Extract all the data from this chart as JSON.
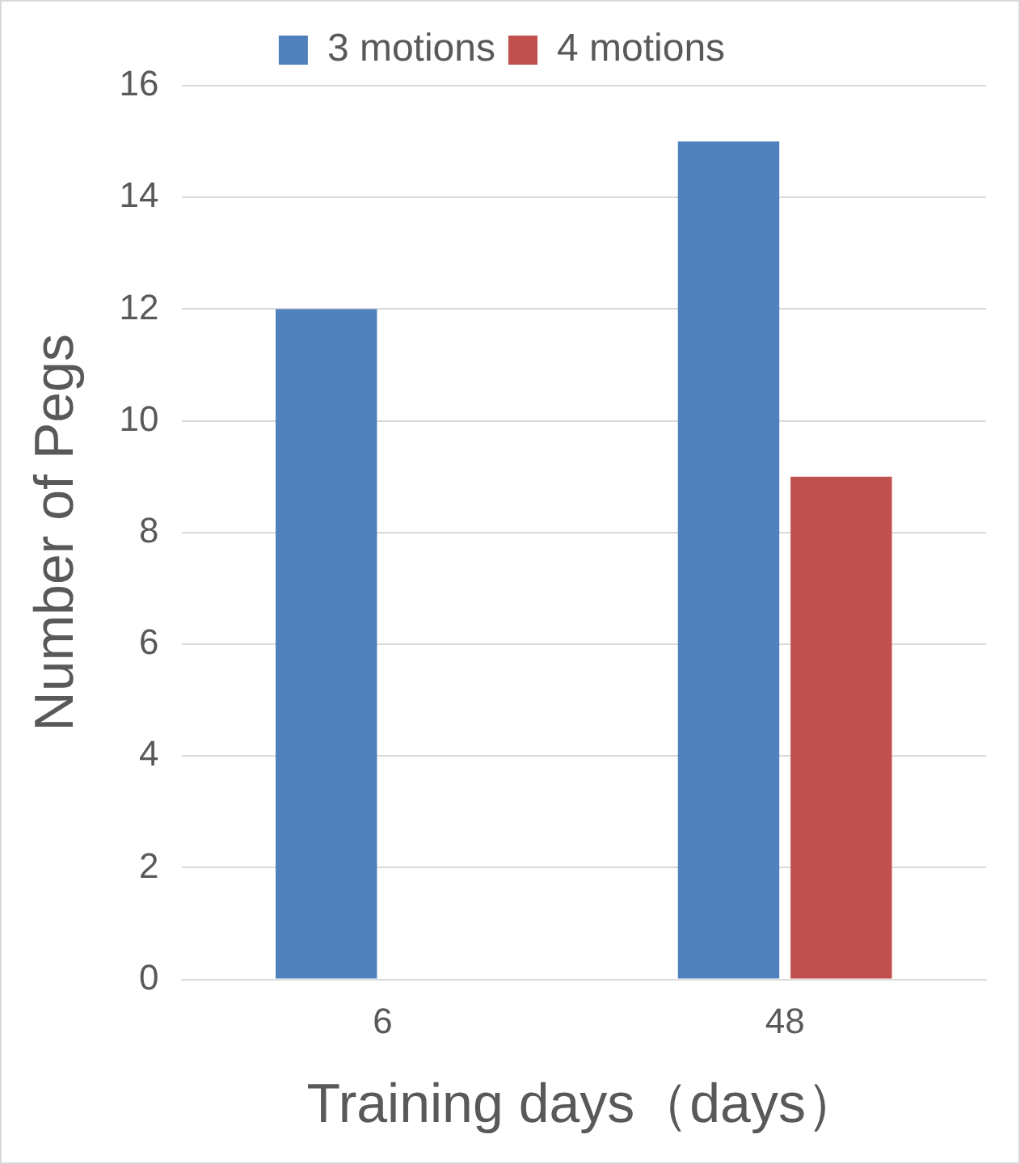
{
  "chart_data": {
    "type": "bar",
    "xlabel": "Training days（days）",
    "ylabel": "Number of Pegs",
    "categories": [
      "6",
      "48"
    ],
    "series": [
      {
        "name": "3 motions",
        "color": "#4f81bd",
        "values": [
          12,
          15
        ]
      },
      {
        "name": "4 motions",
        "color": "#c0504d",
        "values": [
          null,
          9
        ]
      }
    ],
    "ylim": [
      0,
      16
    ],
    "yticks": [
      0,
      2,
      4,
      6,
      8,
      10,
      12,
      14,
      16
    ],
    "grid": "y",
    "legend": "top"
  }
}
